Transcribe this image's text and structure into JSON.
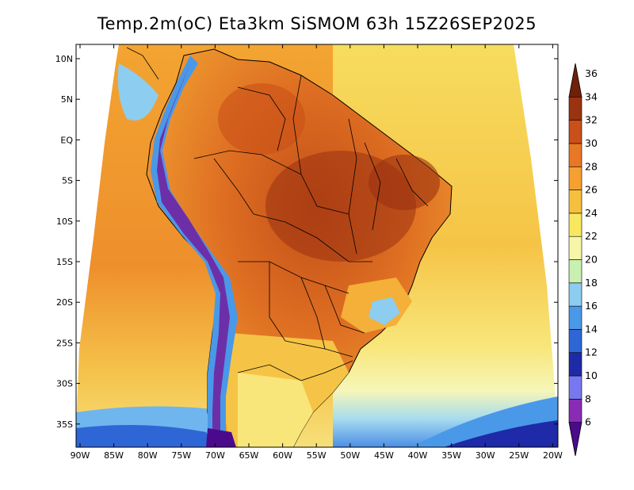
{
  "title": "Temp.2m(oC) Eta3km SiSMOM 63h 15Z26SEP2025",
  "lat_labels": [
    "10N",
    "5N",
    "EQ",
    "5S",
    "10S",
    "15S",
    "20S",
    "25S",
    "30S",
    "35S"
  ],
  "lon_labels": [
    "90W",
    "85W",
    "80W",
    "75W",
    "70W",
    "65W",
    "60W",
    "55W",
    "50W",
    "45W",
    "40W",
    "35W",
    "30W",
    "25W",
    "20W"
  ],
  "colorbar": {
    "labels": [
      "6",
      "8",
      "10",
      "12",
      "14",
      "16",
      "18",
      "20",
      "22",
      "24",
      "26",
      "28",
      "30",
      "32",
      "34",
      "36"
    ],
    "colors": [
      "#4b0a8c",
      "#8a2bb5",
      "#7878ee",
      "#1e2aa8",
      "#2f66d6",
      "#4a98e8",
      "#8ccdf0",
      "#c8f0b0",
      "#f6f6a8",
      "#f8e860",
      "#f5c040",
      "#f5a030",
      "#e87825",
      "#c95018",
      "#9b3210",
      "#6e2008"
    ]
  },
  "colors": {
    "ocean_warm": "#f2a234",
    "ocean_mild": "#f8de66",
    "ocean_cool": "#f6f4a0",
    "land_hot": "#d86a22",
    "andes": "#6d2fa8"
  }
}
